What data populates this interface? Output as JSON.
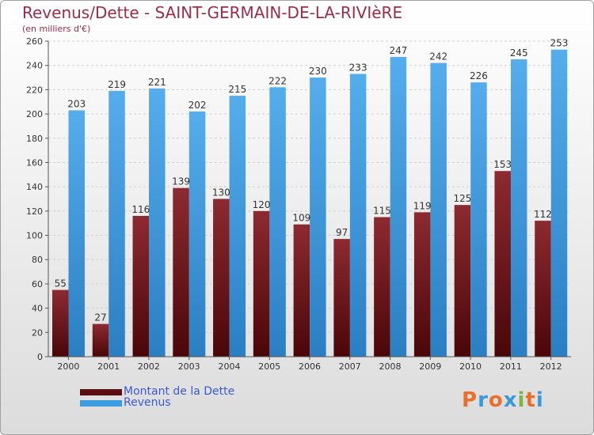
{
  "chart_data": {
    "type": "bar",
    "title": "Revenus/Dette - SAINT-GERMAIN-DE-LA-RIVIèRE",
    "subtitle": "(en milliers d'€)",
    "categories": [
      "2000",
      "2001",
      "2002",
      "2003",
      "2004",
      "2005",
      "2006",
      "2007",
      "2008",
      "2009",
      "2010",
      "2011",
      "2012"
    ],
    "series": [
      {
        "name": "Montant de la Dette",
        "color": "#7a1a1f",
        "values": [
          55,
          27,
          116,
          139,
          130,
          120,
          109,
          97,
          115,
          119,
          125,
          153,
          112
        ]
      },
      {
        "name": "Revenus",
        "color": "#3d9be0",
        "values": [
          203,
          219,
          221,
          202,
          215,
          222,
          230,
          233,
          247,
          242,
          226,
          245,
          253
        ]
      }
    ],
    "ylim": [
      0,
      260
    ],
    "yticks": [
      0,
      20,
      40,
      60,
      80,
      100,
      120,
      140,
      160,
      180,
      200,
      220,
      240,
      260
    ],
    "grid": true,
    "legend_position": "bottom-left"
  },
  "logo": {
    "text": "Proxiti",
    "letters": [
      "P",
      "r",
      "o",
      "x",
      "i",
      "t",
      "i"
    ],
    "colors": [
      "#e8702a",
      "#3a9ad9",
      "#e8702a",
      "#3a9ad9",
      "#7cb342",
      "#e8702a",
      "#3a9ad9"
    ]
  }
}
